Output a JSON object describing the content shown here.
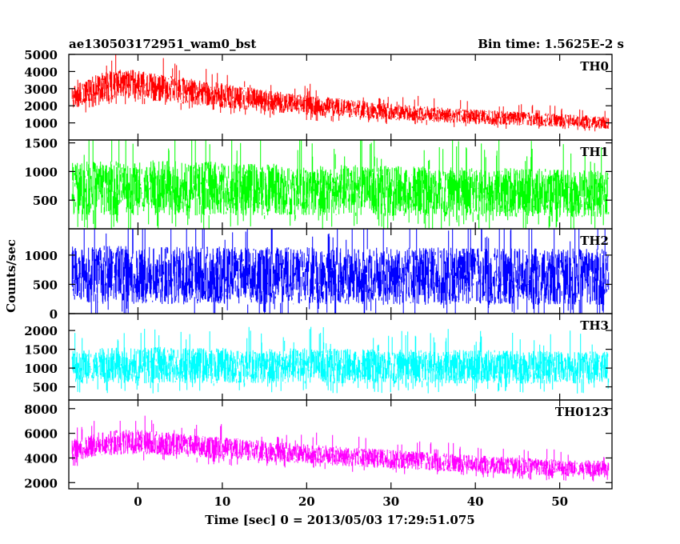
{
  "title_left": "ae130503172951_wam0_bst",
  "title_right": "Bin time: 1.5625E-2 s",
  "ylabel": "Counts/sec",
  "xlabel": "Time [sec] 0 = 2013/05/03 17:29:51.075",
  "chart_data": {
    "type": "line",
    "x_range": [
      -8.2,
      56.2
    ],
    "x_ticks": [
      0,
      10,
      20,
      30,
      40,
      50
    ],
    "x_tick_labels": [
      "0",
      "10",
      "20",
      "30",
      "40",
      "50"
    ],
    "data_x_range": [
      -7.8,
      55.8
    ],
    "panels": [
      {
        "name": "TH0",
        "color": "#ff0000",
        "ylim": [
          0,
          5000
        ],
        "yticks": [
          1000,
          2000,
          3000,
          4000,
          5000
        ],
        "ytick_labels": [
          "1000",
          "2000",
          "3000",
          "4000",
          "5000"
        ],
        "envelope": {
          "t": [
            -7.8,
            -5,
            -2,
            0,
            5,
            10,
            15,
            20,
            25,
            30,
            35,
            40,
            45,
            50,
            55.8
          ],
          "mean": [
            2400,
            3000,
            3300,
            3200,
            2900,
            2600,
            2300,
            2050,
            1850,
            1650,
            1500,
            1350,
            1250,
            1150,
            1000
          ],
          "spread": [
            800,
            950,
            1000,
            950,
            850,
            800,
            700,
            650,
            600,
            550,
            500,
            480,
            450,
            420,
            400
          ]
        }
      },
      {
        "name": "TH1",
        "color": "#00ff00",
        "ylim": [
          0,
          1550
        ],
        "yticks": [
          500,
          1000,
          1500
        ],
        "ytick_labels": [
          "500",
          "1000",
          "1500"
        ],
        "envelope": {
          "t": [
            -7.8,
            0,
            10,
            20,
            30,
            40,
            50,
            55.8
          ],
          "mean": [
            700,
            720,
            700,
            680,
            660,
            640,
            620,
            600
          ],
          "spread": [
            520,
            540,
            520,
            500,
            490,
            480,
            470,
            460
          ]
        }
      },
      {
        "name": "TH2",
        "color": "#0000ff",
        "ylim": [
          0,
          1450
        ],
        "yticks": [
          0,
          500,
          1000
        ],
        "ytick_labels": [
          "0",
          "500",
          "1000"
        ],
        "envelope": {
          "t": [
            -7.8,
            0,
            10,
            20,
            30,
            40,
            50,
            55.8
          ],
          "mean": [
            660,
            660,
            650,
            650,
            640,
            640,
            630,
            630
          ],
          "spread": [
            560,
            560,
            550,
            550,
            550,
            540,
            540,
            540
          ]
        }
      },
      {
        "name": "TH3",
        "color": "#00ffff",
        "ylim": [
          150,
          2450
        ],
        "yticks": [
          500,
          1000,
          1500,
          2000
        ],
        "ytick_labels": [
          "500",
          "1000",
          "1500",
          "2000"
        ],
        "envelope": {
          "t": [
            -7.8,
            0,
            10,
            20,
            30,
            40,
            50,
            55.8
          ],
          "mean": [
            1050,
            1080,
            1070,
            1060,
            1040,
            1030,
            1010,
            1000
          ],
          "spread": [
            520,
            540,
            530,
            520,
            510,
            500,
            500,
            490
          ]
        }
      },
      {
        "name": "TH0123",
        "color": "#ff00ff",
        "ylim": [
          1500,
          8700
        ],
        "yticks": [
          2000,
          4000,
          6000,
          8000
        ],
        "ytick_labels": [
          "2000",
          "4000",
          "6000",
          "8000"
        ],
        "envelope": {
          "t": [
            -7.8,
            -5,
            -2,
            0,
            5,
            10,
            15,
            20,
            25,
            30,
            35,
            40,
            45,
            50,
            55.8
          ],
          "mean": [
            4600,
            5100,
            5300,
            5300,
            5050,
            4800,
            4550,
            4350,
            4100,
            3900,
            3700,
            3500,
            3350,
            3200,
            3100
          ],
          "spread": [
            1000,
            1100,
            1150,
            1100,
            1050,
            1000,
            950,
            900,
            880,
            850,
            820,
            800,
            780,
            760,
            750
          ]
        }
      }
    ]
  }
}
